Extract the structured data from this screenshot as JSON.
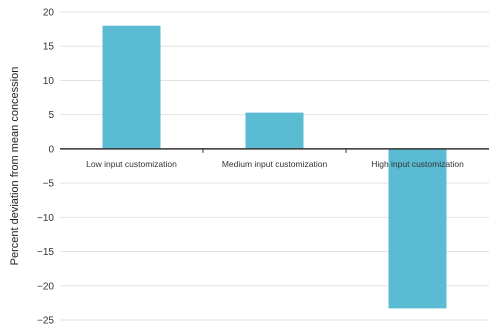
{
  "chart_data": {
    "type": "bar",
    "title": "",
    "xlabel": "",
    "ylabel": "Percent deviation from mean concession",
    "categories": [
      "Low input customization",
      "Medium input customization",
      "High input customization"
    ],
    "values": [
      18,
      5.3,
      -23.3
    ],
    "ylim": [
      -25,
      20
    ],
    "yticks": [
      20,
      15,
      10,
      5,
      0,
      -5,
      -10,
      -15,
      -20,
      -25
    ],
    "ytick_labels": [
      "20",
      "15",
      "10",
      "5",
      "0",
      "−5",
      "−10",
      "−15",
      "−20",
      "−25"
    ],
    "grid": true,
    "legend": "none",
    "colors": {
      "bar": "#5bbbd3",
      "grid": "#e2e2e2",
      "zero_line": "#333333",
      "text": "#333333"
    }
  }
}
